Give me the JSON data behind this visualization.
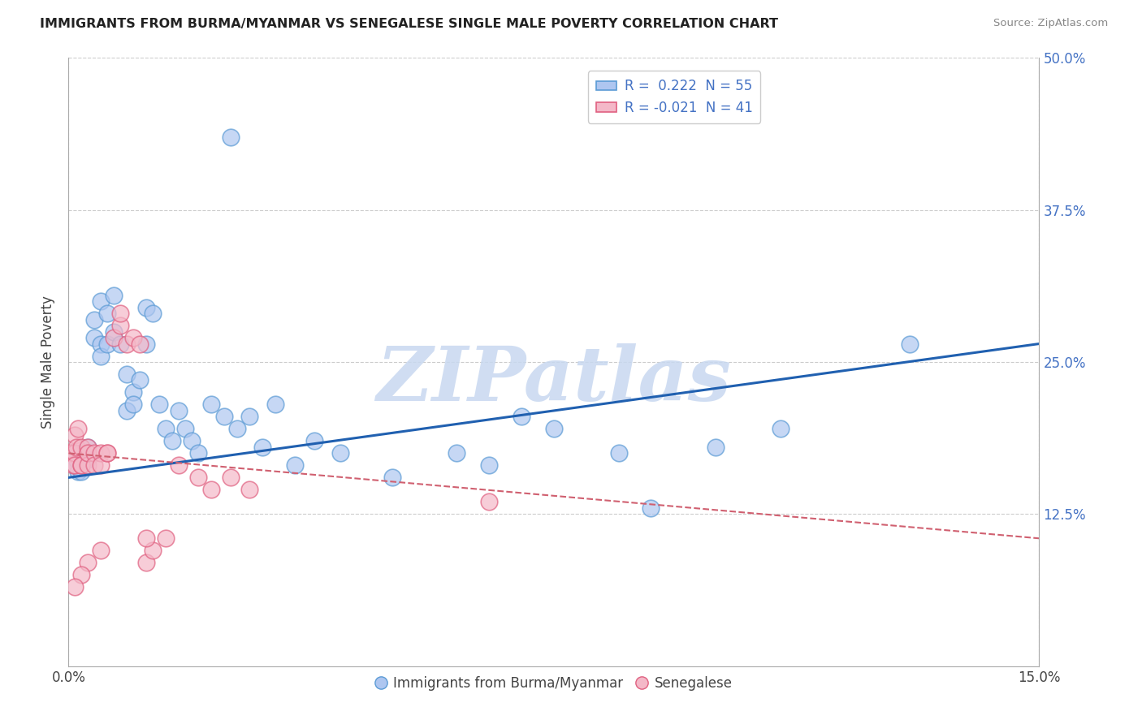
{
  "title": "IMMIGRANTS FROM BURMA/MYANMAR VS SENEGALESE SINGLE MALE POVERTY CORRELATION CHART",
  "source": "Source: ZipAtlas.com",
  "ylabel": "Single Male Poverty",
  "x_min": 0.0,
  "x_max": 0.15,
  "y_min": 0.0,
  "y_max": 0.5,
  "x_ticks": [
    0.0,
    0.15
  ],
  "x_tick_labels": [
    "0.0%",
    "15.0%"
  ],
  "y_ticks": [
    0.125,
    0.25,
    0.375,
    0.5
  ],
  "y_tick_labels": [
    "12.5%",
    "25.0%",
    "37.5%",
    "50.0%"
  ],
  "blue_color_fill": "#aec6f0",
  "blue_color_edge": "#5b9bd5",
  "pink_color_fill": "#f4b8c8",
  "pink_color_edge": "#e06080",
  "blue_line_color": "#2060b0",
  "pink_line_color": "#d06070",
  "blue_line_y0": 0.155,
  "blue_line_y1": 0.265,
  "pink_line_y0": 0.175,
  "pink_line_y1": 0.105,
  "watermark": "ZIPatlas",
  "watermark_color": "#c8d8f0",
  "background_color": "#ffffff",
  "grid_color": "#cccccc",
  "legend_r_blue": "R =  0.222",
  "legend_n_blue": "N = 55",
  "legend_r_pink": "R = -0.021",
  "legend_n_pink": "N = 41",
  "blue_x": [
    0.0008,
    0.001,
    0.0012,
    0.0015,
    0.002,
    0.002,
    0.002,
    0.003,
    0.003,
    0.003,
    0.004,
    0.004,
    0.005,
    0.005,
    0.005,
    0.006,
    0.006,
    0.007,
    0.007,
    0.008,
    0.009,
    0.009,
    0.01,
    0.01,
    0.011,
    0.012,
    0.012,
    0.013,
    0.014,
    0.015,
    0.016,
    0.017,
    0.018,
    0.019,
    0.02,
    0.022,
    0.024,
    0.026,
    0.028,
    0.03,
    0.032,
    0.035,
    0.038,
    0.042,
    0.025,
    0.07,
    0.085,
    0.11,
    0.13,
    0.05,
    0.06,
    0.065,
    0.075,
    0.09,
    0.1
  ],
  "blue_y": [
    0.175,
    0.165,
    0.17,
    0.16,
    0.175,
    0.165,
    0.16,
    0.18,
    0.175,
    0.17,
    0.285,
    0.27,
    0.3,
    0.265,
    0.255,
    0.29,
    0.265,
    0.305,
    0.275,
    0.265,
    0.24,
    0.21,
    0.225,
    0.215,
    0.235,
    0.295,
    0.265,
    0.29,
    0.215,
    0.195,
    0.185,
    0.21,
    0.195,
    0.185,
    0.175,
    0.215,
    0.205,
    0.195,
    0.205,
    0.18,
    0.215,
    0.165,
    0.185,
    0.175,
    0.435,
    0.205,
    0.175,
    0.195,
    0.265,
    0.155,
    0.175,
    0.165,
    0.195,
    0.13,
    0.18
  ],
  "pink_x": [
    0.0003,
    0.0005,
    0.0007,
    0.001,
    0.001,
    0.001,
    0.0012,
    0.0015,
    0.002,
    0.002,
    0.002,
    0.003,
    0.003,
    0.003,
    0.003,
    0.004,
    0.004,
    0.005,
    0.005,
    0.006,
    0.006,
    0.007,
    0.008,
    0.008,
    0.009,
    0.01,
    0.011,
    0.012,
    0.013,
    0.015,
    0.017,
    0.02,
    0.022,
    0.025,
    0.028,
    0.012,
    0.005,
    0.003,
    0.002,
    0.001,
    0.065
  ],
  "pink_y": [
    0.175,
    0.175,
    0.165,
    0.19,
    0.175,
    0.165,
    0.18,
    0.195,
    0.165,
    0.18,
    0.165,
    0.175,
    0.18,
    0.165,
    0.175,
    0.175,
    0.165,
    0.175,
    0.165,
    0.175,
    0.175,
    0.27,
    0.28,
    0.29,
    0.265,
    0.27,
    0.265,
    0.085,
    0.095,
    0.105,
    0.165,
    0.155,
    0.145,
    0.155,
    0.145,
    0.105,
    0.095,
    0.085,
    0.075,
    0.065,
    0.135
  ]
}
